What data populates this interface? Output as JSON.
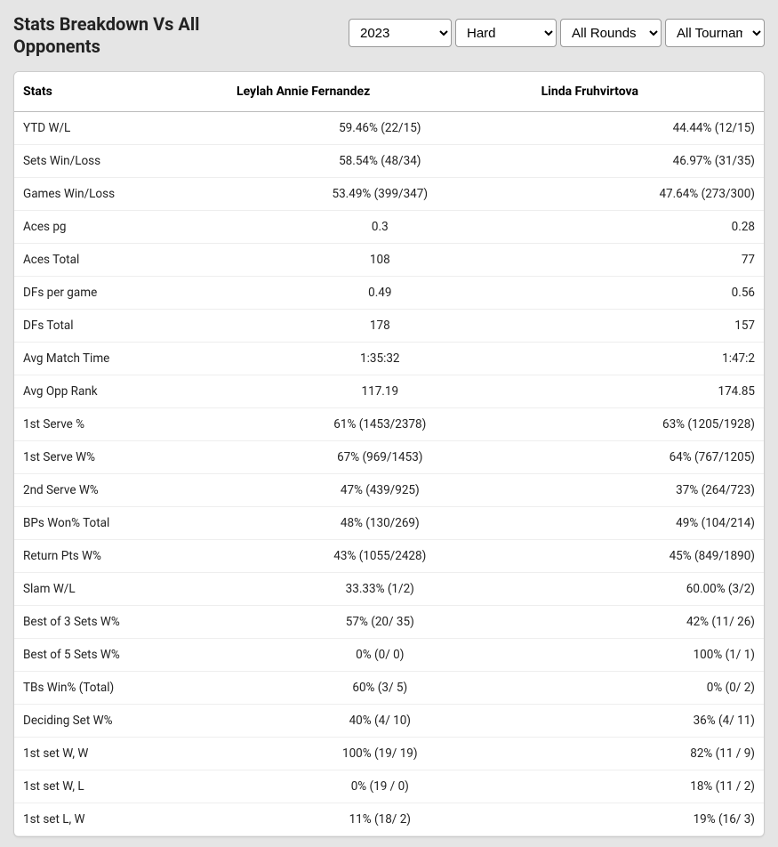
{
  "header": {
    "title": "Stats Breakdown Vs All Opponents",
    "filters": {
      "year": "2023",
      "surface": "Hard",
      "round": "All Rounds",
      "tournament": "All Tournaments"
    }
  },
  "table": {
    "columns": {
      "stats": "Stats",
      "player1": "Leylah Annie Fernandez",
      "player2": "Linda Fruhvirtova"
    },
    "rows": [
      {
        "stat": "YTD W/L",
        "p1": "59.46% (22/15)",
        "p2": "44.44% (12/15)"
      },
      {
        "stat": "Sets Win/Loss",
        "p1": "58.54% (48/34)",
        "p2": "46.97% (31/35)"
      },
      {
        "stat": "Games Win/Loss",
        "p1": "53.49% (399/347)",
        "p2": "47.64% (273/300)"
      },
      {
        "stat": "Aces pg",
        "p1": "0.3",
        "p2": "0.28"
      },
      {
        "stat": "Aces Total",
        "p1": "108",
        "p2": "77"
      },
      {
        "stat": "DFs per game",
        "p1": "0.49",
        "p2": "0.56"
      },
      {
        "stat": "DFs Total",
        "p1": "178",
        "p2": "157"
      },
      {
        "stat": "Avg Match Time",
        "p1": "1:35:32",
        "p2": "1:47:2"
      },
      {
        "stat": "Avg Opp Rank",
        "p1": "117.19",
        "p2": "174.85"
      },
      {
        "stat": "1st Serve %",
        "p1": "61% (1453/2378)",
        "p2": "63% (1205/1928)"
      },
      {
        "stat": "1st Serve W%",
        "p1": "67% (969/1453)",
        "p2": "64% (767/1205)"
      },
      {
        "stat": "2nd Serve W%",
        "p1": "47% (439/925)",
        "p2": "37% (264/723)"
      },
      {
        "stat": "BPs Won% Total",
        "p1": "48% (130/269)",
        "p2": "49% (104/214)"
      },
      {
        "stat": "Return Pts W%",
        "p1": "43% (1055/2428)",
        "p2": "45% (849/1890)"
      },
      {
        "stat": "Slam W/L",
        "p1": "33.33% (1/2)",
        "p2": "60.00% (3/2)"
      },
      {
        "stat": "Best of 3 Sets W%",
        "p1": "57% (20/ 35)",
        "p2": "42% (11/ 26)"
      },
      {
        "stat": "Best of 5 Sets W%",
        "p1": "0% (0/ 0)",
        "p2": "100% (1/ 1)"
      },
      {
        "stat": "TBs Win% (Total)",
        "p1": "60% (3/ 5)",
        "p2": "0% (0/ 2)"
      },
      {
        "stat": "Deciding Set W%",
        "p1": "40% (4/ 10)",
        "p2": "36% (4/ 11)"
      },
      {
        "stat": "1st set W, W",
        "p1": "100% (19/ 19)",
        "p2": "82% (11 / 9)"
      },
      {
        "stat": "1st set W, L",
        "p1": "0% (19 / 0)",
        "p2": "18% (11 / 2)"
      },
      {
        "stat": "1st set L, W",
        "p1": "11% (18/ 2)",
        "p2": "19% (16/ 3)"
      }
    ]
  }
}
